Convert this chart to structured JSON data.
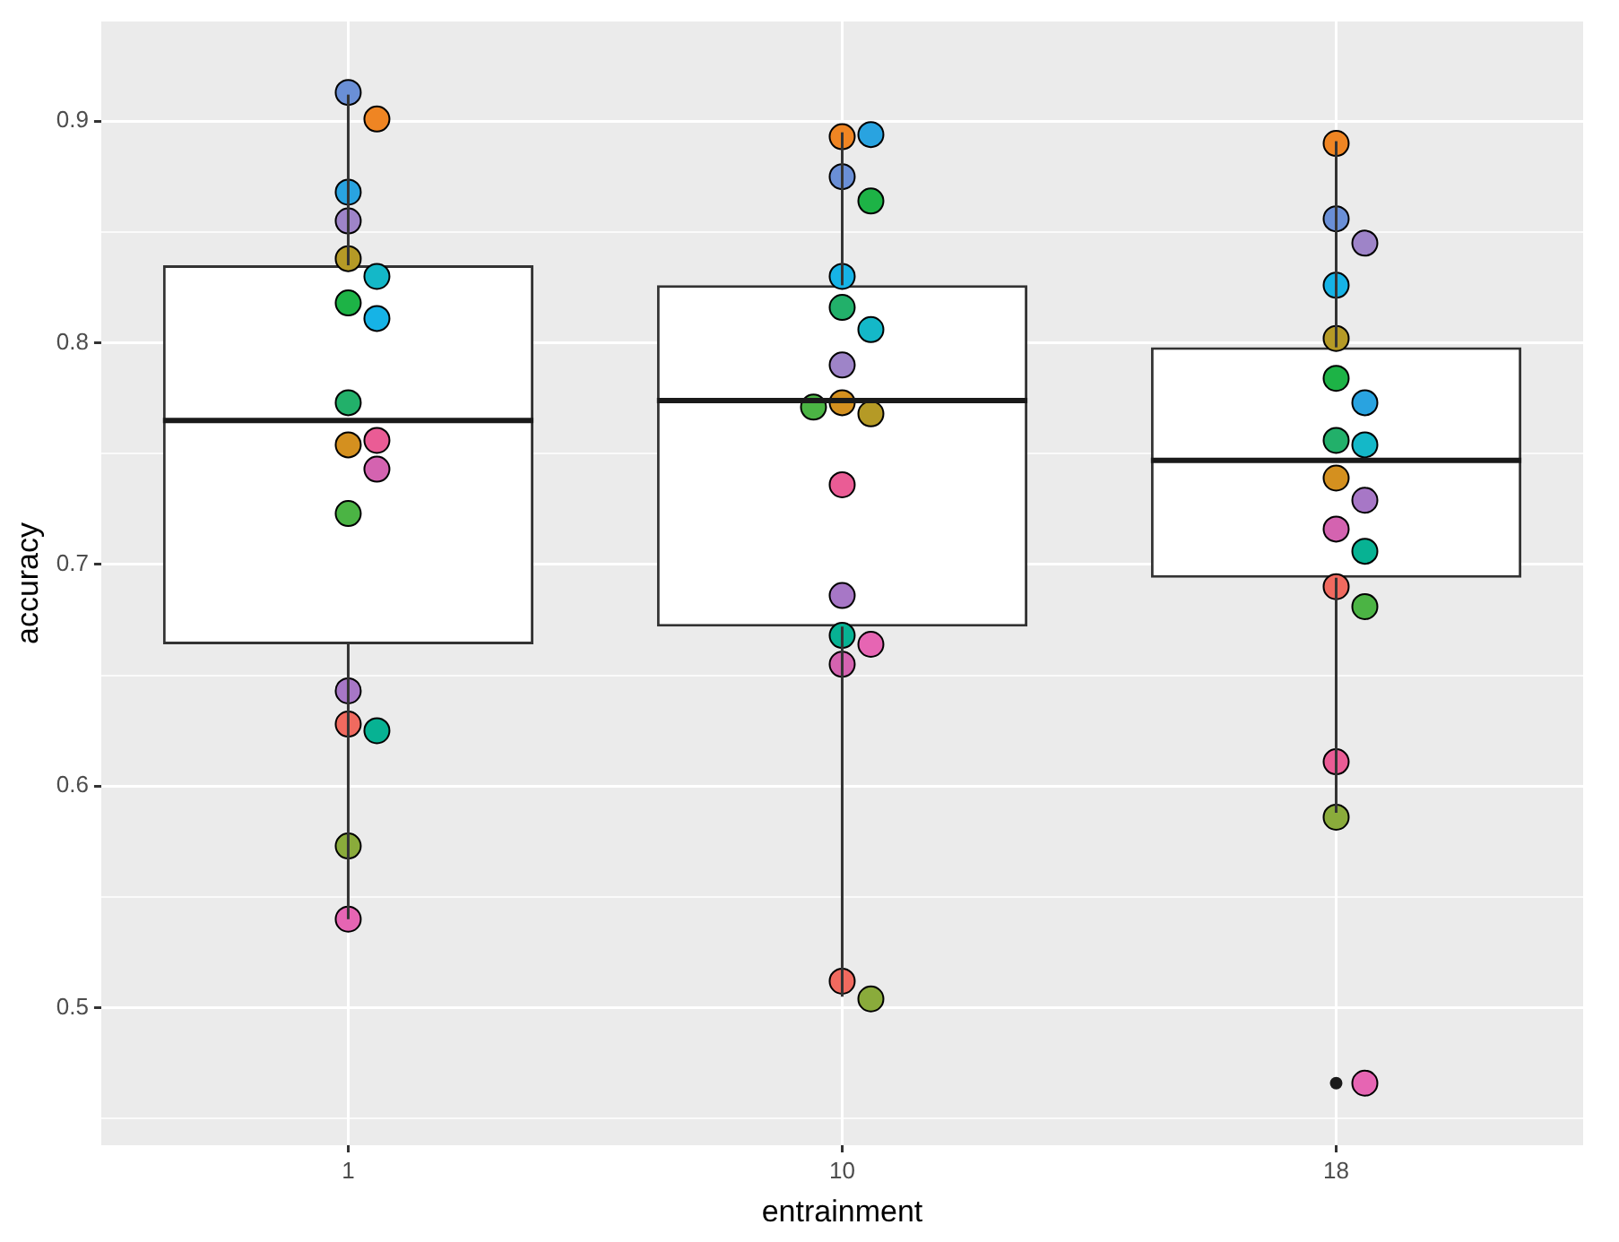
{
  "chart_data": {
    "type": "box",
    "xlabel": "entrainment",
    "ylabel": "accuracy",
    "categories": [
      "1",
      "10",
      "18"
    ],
    "boxes": [
      {
        "low": 0.54,
        "q1": 0.664,
        "median": 0.765,
        "q3": 0.835,
        "high": 0.912
      },
      {
        "low": 0.505,
        "q1": 0.672,
        "median": 0.774,
        "q3": 0.826,
        "high": 0.895
      },
      {
        "low": 0.588,
        "q1": 0.694,
        "median": 0.747,
        "q3": 0.798,
        "high": 0.891,
        "outliers": [
          0.466
        ]
      }
    ],
    "color": "#333333",
    "ylim": [
      0.438,
      0.945
    ],
    "yticks": [
      {
        "value": 0.45,
        "label": null
      },
      0.5,
      {
        "value": 0.55,
        "label": null
      },
      0.6,
      {
        "value": 0.65,
        "label": null
      },
      0.7,
      {
        "value": 0.75,
        "label": null
      },
      0.8,
      {
        "value": 0.85,
        "label": null
      },
      0.9
    ],
    "grid": true,
    "marker": "circle",
    "legend": false,
    "series": [
      {
        "type": "scatter",
        "x": [
          "1",
          "1",
          "1",
          "1",
          "1",
          "1",
          "1",
          "1",
          "1",
          "1",
          "1",
          "1",
          "1",
          "1",
          "1",
          "1",
          "1",
          "1",
          "10",
          "10",
          "10",
          "10",
          "10",
          "10",
          "10",
          "10",
          "10",
          "10",
          "10",
          "10",
          "10",
          "10",
          "10",
          "10",
          "10",
          "10",
          "18",
          "18",
          "18",
          "18",
          "18",
          "18",
          "18",
          "18",
          "18",
          "18",
          "18",
          "18",
          "18",
          "18",
          "18",
          "18",
          "18",
          "18"
        ],
        "values": [
          0.913,
          0.901,
          0.868,
          0.855,
          0.838,
          0.83,
          0.818,
          0.811,
          0.773,
          0.754,
          0.756,
          0.743,
          0.723,
          0.643,
          0.628,
          0.625,
          0.573,
          0.54,
          0.893,
          0.894,
          0.875,
          0.864,
          0.83,
          0.816,
          0.806,
          0.79,
          0.773,
          0.768,
          0.771,
          0.736,
          0.686,
          0.668,
          0.664,
          0.655,
          0.512,
          0.504,
          0.89,
          0.856,
          0.845,
          0.826,
          0.802,
          0.784,
          0.773,
          0.756,
          0.754,
          0.739,
          0.729,
          0.716,
          0.706,
          0.69,
          0.681,
          0.611,
          0.586,
          0.466
        ],
        "colors": [
          "#6a8fd6",
          "#ef8523",
          "#29a3e0",
          "#9e84c8",
          "#b59a26",
          "#14b8c8",
          "#1db346",
          "#16b3e6",
          "#22b06a",
          "#d4901f",
          "#ea5c95",
          "#d463b0",
          "#4bb444",
          "#a777c6",
          "#f06a5f",
          "#07b293",
          "#8aab3b",
          "#e665b3",
          "#ef8523",
          "#29a3e0",
          "#6a8fd6",
          "#1db346",
          "#16b3e6",
          "#22b06a",
          "#14b8c8",
          "#9e84c8",
          "#d4901f",
          "#b59a26",
          "#4bb444",
          "#ea5c95",
          "#a777c6",
          "#07b293",
          "#e665b3",
          "#d463b0",
          "#f06a5f",
          "#8aab3b",
          "#ef8523",
          "#6a8fd6",
          "#9e84c8",
          "#16b3e6",
          "#b59a26",
          "#1db346",
          "#29a3e0",
          "#22b06a",
          "#14b8c8",
          "#d4901f",
          "#a777c6",
          "#d463b0",
          "#07b293",
          "#f06a5f",
          "#4bb444",
          "#ea5c95",
          "#8aab3b",
          "#e665b3"
        ]
      }
    ]
  }
}
